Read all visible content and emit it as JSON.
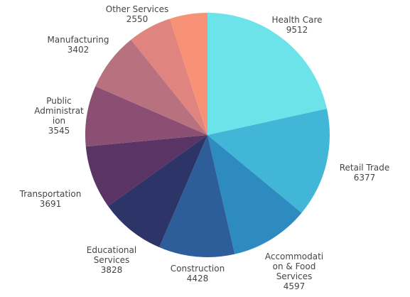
{
  "chart_data": {
    "type": "pie",
    "categories": [
      "Health Care",
      "Retail Trade",
      "Accommodation & Food Services",
      "Construction",
      "Educational Services",
      "Transportation",
      "Public Administration",
      "Manufacturing",
      "Other Services",
      null
    ],
    "values": [
      9512,
      6377,
      4597,
      4428,
      3828,
      3691,
      3545,
      3402,
      2550,
      2200
    ],
    "colors": [
      "#6be3e8",
      "#41b6d6",
      "#2e8bbf",
      "#2d5e9a",
      "#2d3468",
      "#5a3465",
      "#8a4f72",
      "#b8727f",
      "#e0847f",
      "#f79276"
    ]
  }
}
